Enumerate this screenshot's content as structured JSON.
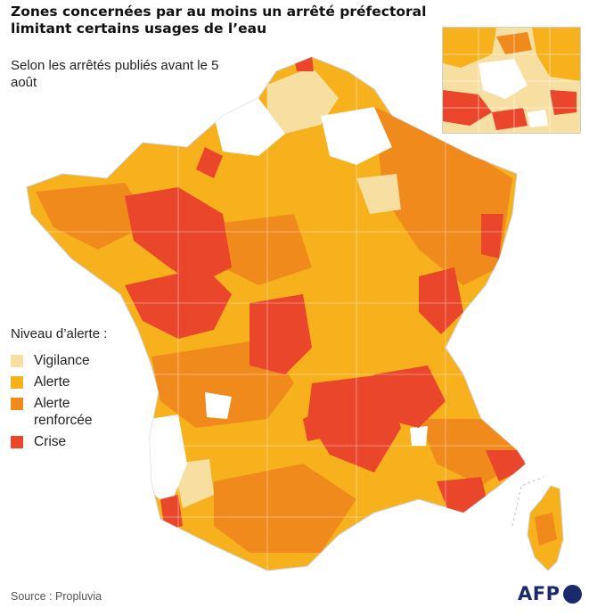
{
  "title": "Zones concernées par au moins un arrêté préfectoral limitant certains usages de l’eau",
  "subtitle": "Selon les arrêtés publiés avant le 5 août",
  "legend": {
    "title": "Niveau d’alerte :",
    "items": [
      {
        "label": "Vigilance",
        "color": "#f7dea1"
      },
      {
        "label": "Alerte",
        "color": "#f6b11c"
      },
      {
        "label": "Alerte renforcée",
        "color": "#f18a1c"
      },
      {
        "label": "Crise",
        "color": "#e9462b"
      }
    ]
  },
  "source": "Source : Propluvia",
  "logo": "AFP",
  "colors": {
    "vigilance": "#f7dea1",
    "alerte": "#f6b11c",
    "alerte_renforcee": "#f18a1c",
    "crise": "#e9462b",
    "no_restriction": "#ffffff",
    "borders": "#d9d9d9"
  }
}
